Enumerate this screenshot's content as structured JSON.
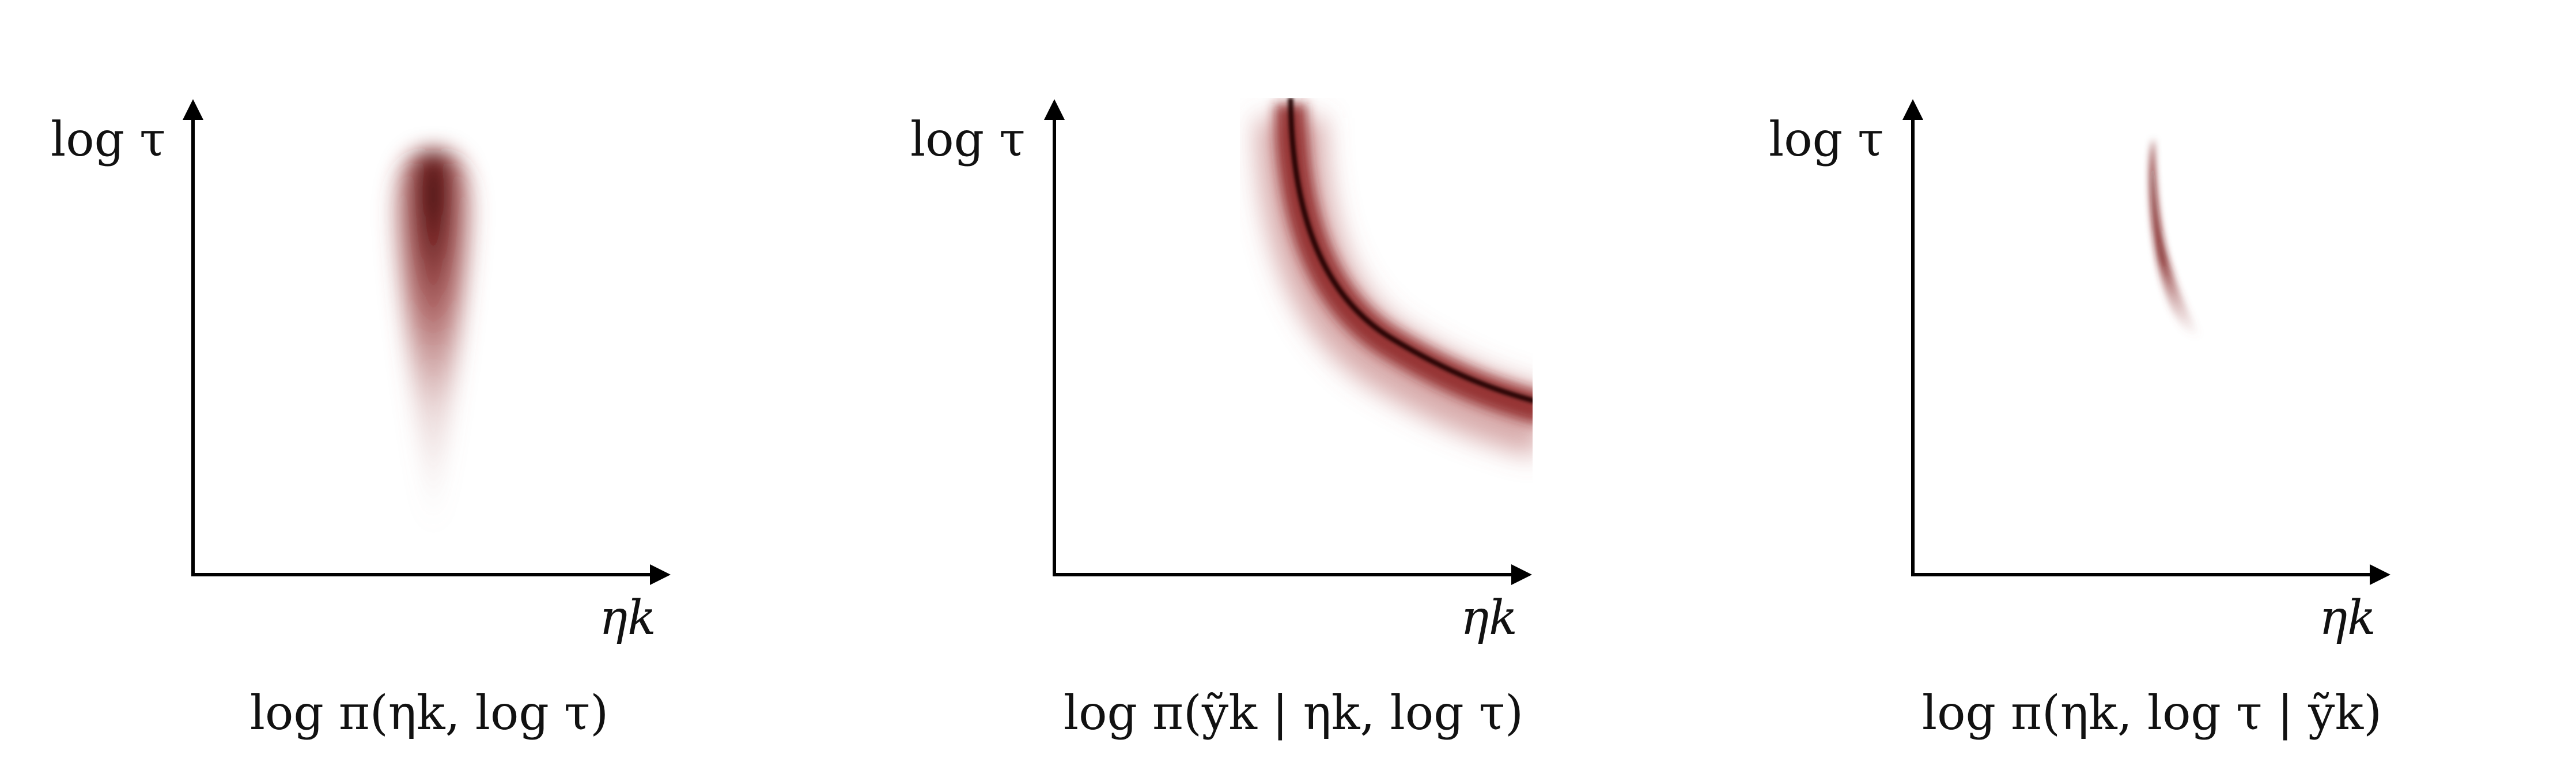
{
  "colors": {
    "density": "#7a1414",
    "density_core": "#1a0000",
    "axis": "#000000",
    "background": "#ffffff"
  },
  "panels": [
    {
      "id": "prior",
      "y_axis_label": "log τ",
      "x_axis_label": "ηk",
      "caption": "log π(ηk, log τ)"
    },
    {
      "id": "likelihood",
      "y_axis_label": "log τ",
      "x_axis_label": "ηk",
      "caption": "log π(ỹk | ηk, log τ)"
    },
    {
      "id": "posterior",
      "y_axis_label": "log τ",
      "x_axis_label": "ηk",
      "caption": "log π(ηk, log τ | ỹk)"
    }
  ]
}
